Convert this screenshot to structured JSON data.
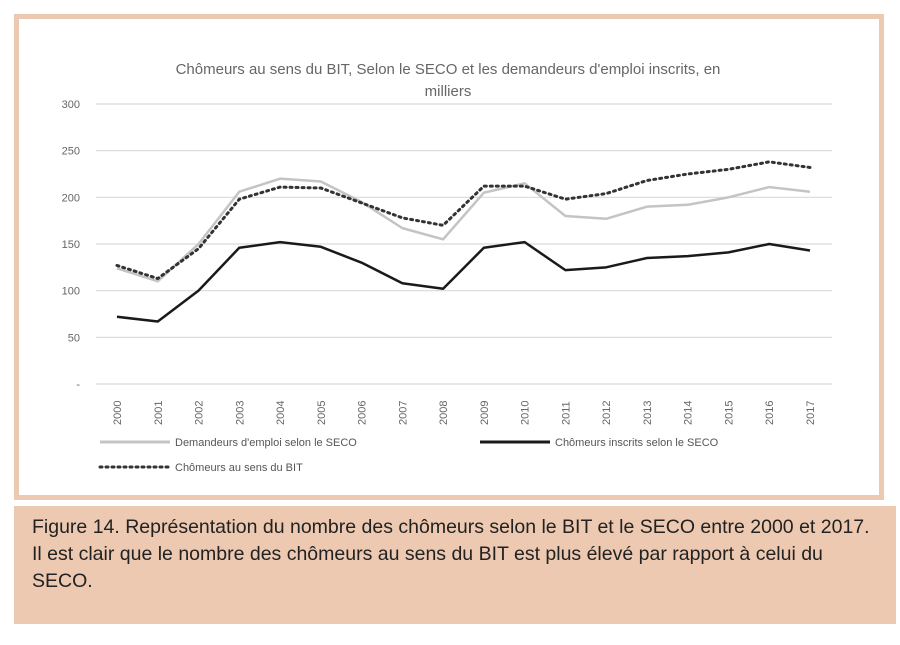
{
  "chart_data": {
    "type": "line",
    "title": "Chômeurs au sens du BIT, Selon le SECO et les demandeurs d'emploi inscrits, en milliers",
    "title_lines": [
      "Chômeurs au sens du BIT, Selon le SECO et les demandeurs d'emploi inscrits, en",
      "milliers"
    ],
    "categories": [
      "2000",
      "2001",
      "2002",
      "2003",
      "2004",
      "2005",
      "2006",
      "2007",
      "2008",
      "2009",
      "2010",
      "2011",
      "2012",
      "2013",
      "2014",
      "2015",
      "2016",
      "2017"
    ],
    "yticks": [
      "-",
      "50",
      "100",
      "150",
      "200",
      "250",
      "300"
    ],
    "ylim": [
      0,
      300
    ],
    "grid": true,
    "legend": "bottom",
    "series": [
      {
        "name": "Demandeurs d'emploi selon le SECO",
        "color": "#c4c4c4",
        "style": "solid",
        "values": [
          124,
          110,
          150,
          206,
          220,
          217,
          195,
          167,
          155,
          205,
          215,
          180,
          177,
          190,
          192,
          200,
          211,
          206
        ]
      },
      {
        "name": "Chômeurs inscrits selon le SECO",
        "color": "#1a1a1a",
        "style": "solid",
        "values": [
          72,
          67,
          100,
          146,
          152,
          147,
          130,
          108,
          102,
          146,
          152,
          122,
          125,
          135,
          137,
          141,
          150,
          143
        ]
      },
      {
        "name": "Chômeurs au sens du BIT",
        "color": "#333333",
        "style": "dotted",
        "values": [
          127,
          113,
          145,
          198,
          211,
          210,
          194,
          178,
          170,
          212,
          212,
          198,
          204,
          218,
          225,
          230,
          238,
          232
        ]
      }
    ]
  },
  "caption": "Figure 14. Représentation du nombre des chômeurs selon le BIT et le SECO entre 2000 et 2017. Il est clair que le nombre des chômeurs au sens du BIT est plus élevé par rapport à celui du SECO."
}
